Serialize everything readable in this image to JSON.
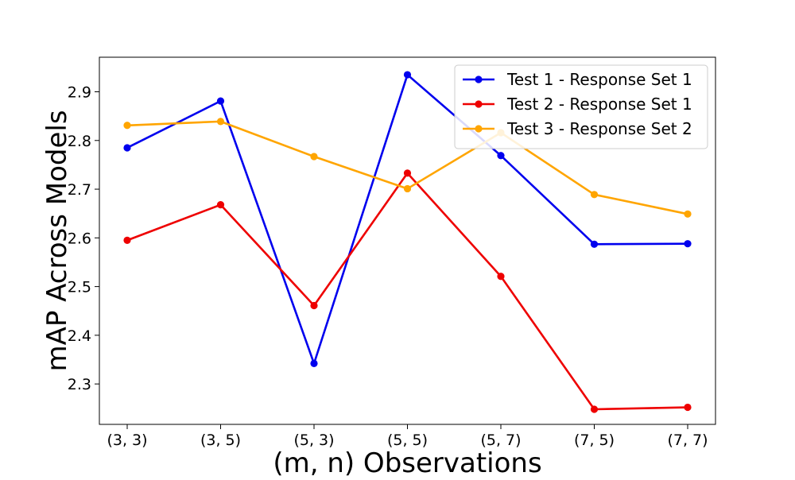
{
  "chart_data": {
    "type": "line",
    "title": "",
    "xlabel": "(m, n) Observations",
    "ylabel": "mAP Across Models",
    "categories": [
      "(3, 3)",
      "(3, 5)",
      "(5, 3)",
      "(5, 5)",
      "(5, 7)",
      "(7, 5)",
      "(7, 7)"
    ],
    "ylim": [
      2.217,
      2.971
    ],
    "yticks": [
      2.3,
      2.4,
      2.5,
      2.6,
      2.7,
      2.8,
      2.9
    ],
    "ytick_labels": [
      "2.3",
      "2.4",
      "2.5",
      "2.6",
      "2.7",
      "2.8",
      "2.9"
    ],
    "grid": false,
    "legend_position": "top-right",
    "series": [
      {
        "name": "Test 1 - Response Set 1",
        "color": "#0000ee",
        "values": [
          2.785,
          2.881,
          2.342,
          2.935,
          2.769,
          2.587,
          2.588
        ]
      },
      {
        "name": "Test 2 - Response Set 1",
        "color": "#ee0000",
        "values": [
          2.595,
          2.668,
          2.461,
          2.733,
          2.521,
          2.248,
          2.252
        ]
      },
      {
        "name": "Test 3 - Response Set 2",
        "color": "#ffa500",
        "values": [
          2.831,
          2.839,
          2.767,
          2.701,
          2.816,
          2.689,
          2.649
        ]
      }
    ]
  }
}
